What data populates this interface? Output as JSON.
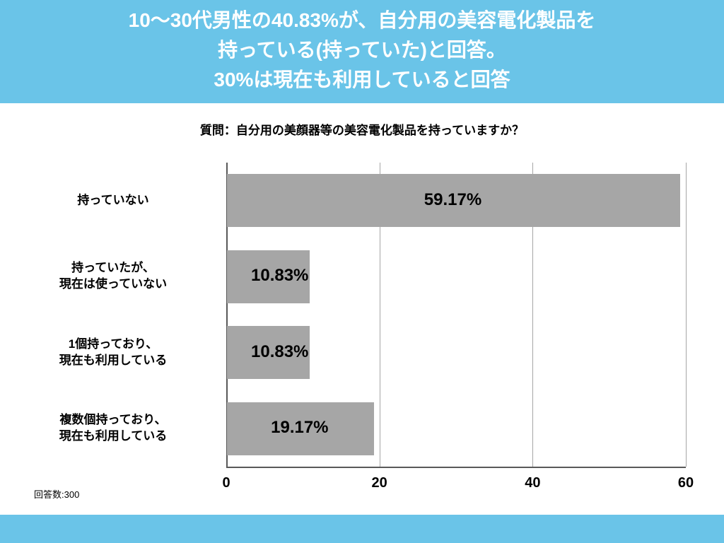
{
  "header": {
    "line1": "10〜30代男性の40.83%が、自分用の美容電化製品を",
    "line2": "持っている(持っていた)と回答。",
    "line3": "30%は現在も利用していると回答",
    "bg": "#6ac4e8",
    "fg": "#ffffff"
  },
  "subtitle": "質問：自分用の美顔器等の美容電化製品を持っていますか？",
  "chart": {
    "type": "bar-horizontal",
    "xlim": [
      0,
      60
    ],
    "xticks": [
      0,
      20,
      40,
      60
    ],
    "bar_color": "#a6a6a6",
    "grid_color": "#a6a6a6",
    "axis_color": "#595959",
    "label_fontsize": 24,
    "categories": [
      {
        "label_lines": [
          "持っていない"
        ],
        "value": 59.17,
        "display": "59.17%"
      },
      {
        "label_lines": [
          "持っていたが、",
          "現在は使っていない"
        ],
        "value": 10.83,
        "display": "10.83%"
      },
      {
        "label_lines": [
          "1個持っており、",
          "現在も利用している"
        ],
        "value": 10.83,
        "display": "10.83%"
      },
      {
        "label_lines": [
          "複数個持っており、",
          "現在も利用している"
        ],
        "value": 19.17,
        "display": "19.17%"
      }
    ]
  },
  "footnote": "回答数:300",
  "footer_color": "#6ac4e8"
}
